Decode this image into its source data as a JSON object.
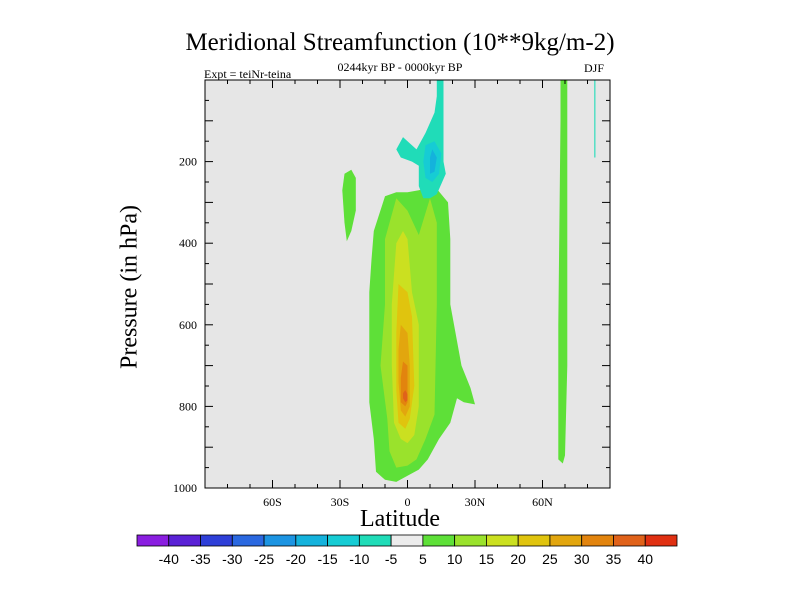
{
  "chart_data": {
    "type": "heatmap",
    "title": "Meridional Streamfunction (10**9kg/m-2)",
    "subtitle": "0244kyr BP - 0000kyr BP",
    "experiment": "Expt = teiNr-teina",
    "season": "DJF",
    "xlabel": "Latitude",
    "ylabel": "Pressure (in hPa)",
    "xlim": [
      -90,
      90
    ],
    "ylim": [
      1000,
      0
    ],
    "x_ticks": [
      {
        "value": -60,
        "label": "60S"
      },
      {
        "value": -30,
        "label": "30S"
      },
      {
        "value": 0,
        "label": "0"
      },
      {
        "value": 30,
        "label": "30N"
      },
      {
        "value": 60,
        "label": "60N"
      }
    ],
    "y_ticks": [
      {
        "value": 200,
        "label": "200"
      },
      {
        "value": 400,
        "label": "400"
      },
      {
        "value": 600,
        "label": "600"
      },
      {
        "value": 800,
        "label": "800"
      },
      {
        "value": 1000,
        "label": "1000"
      }
    ],
    "background_color": "#e6e6e6",
    "colorbar": {
      "levels": [
        "-40",
        "-35",
        "-30",
        "-25",
        "-20",
        "-15",
        "-10",
        "-5",
        "5",
        "10",
        "15",
        "20",
        "25",
        "30",
        "35",
        "40"
      ],
      "colors": [
        "#8a1ee0",
        "#5a22d6",
        "#2e3fd8",
        "#2a68e0",
        "#1c94e2",
        "#14b2dc",
        "#16ccd4",
        "#20dcb8",
        "#ececec",
        "#5ee038",
        "#9ae22c",
        "#cbe020",
        "#e0c40e",
        "#e2a60e",
        "#e2840e",
        "#e0621a",
        "#e03012"
      ]
    },
    "contour_regions": [
      {
        "name": "green-far-east-strip",
        "value": 5,
        "color": "#5ee038",
        "points": [
          [
            68,
            0
          ],
          [
            71,
            0
          ],
          [
            71,
            700
          ],
          [
            70,
            920
          ],
          [
            69,
            940
          ],
          [
            67,
            930
          ],
          [
            67,
            600
          ],
          [
            68,
            100
          ]
        ]
      },
      {
        "name": "green-western-lobe",
        "value": 5,
        "color": "#5ee038",
        "points": [
          [
            -28,
            230
          ],
          [
            -25,
            220
          ],
          [
            -23,
            240
          ],
          [
            -23,
            320
          ],
          [
            -25,
            370
          ],
          [
            -27,
            395
          ],
          [
            -28,
            350
          ],
          [
            -29,
            270
          ]
        ]
      },
      {
        "name": "green-main-cell",
        "value": 5,
        "color": "#5ee038",
        "points": [
          [
            -15,
            370
          ],
          [
            -10,
            285
          ],
          [
            -5,
            275
          ],
          [
            0,
            275
          ],
          [
            5,
            270
          ],
          [
            12,
            260
          ],
          [
            18,
            300
          ],
          [
            19,
            390
          ],
          [
            19,
            550
          ],
          [
            24,
            700
          ],
          [
            28,
            755
          ],
          [
            30,
            795
          ],
          [
            25,
            790
          ],
          [
            22,
            780
          ],
          [
            19,
            840
          ],
          [
            14,
            880
          ],
          [
            9,
            930
          ],
          [
            5,
            955
          ],
          [
            0,
            970
          ],
          [
            -5,
            985
          ],
          [
            -10,
            980
          ],
          [
            -14,
            960
          ],
          [
            -15,
            880
          ],
          [
            -17,
            790
          ],
          [
            -17,
            650
          ],
          [
            -17,
            520
          ],
          [
            -16,
            440
          ]
        ]
      },
      {
        "name": "yellow-green-cell",
        "value": 10,
        "color": "#9ae22c",
        "points": [
          [
            -10,
            390
          ],
          [
            -5,
            290
          ],
          [
            0,
            320
          ],
          [
            5,
            380
          ],
          [
            10,
            290
          ],
          [
            13,
            350
          ],
          [
            13,
            550
          ],
          [
            12,
            820
          ],
          [
            8,
            880
          ],
          [
            4,
            930
          ],
          [
            0,
            945
          ],
          [
            -5,
            950
          ],
          [
            -8,
            910
          ],
          [
            -9,
            830
          ],
          [
            -12,
            700
          ],
          [
            -10,
            550
          ]
        ]
      },
      {
        "name": "yellow-cell",
        "value": 15,
        "color": "#cbe020",
        "points": [
          [
            -5,
            400
          ],
          [
            -2,
            370
          ],
          [
            0,
            390
          ],
          [
            2,
            520
          ],
          [
            5,
            600
          ],
          [
            5,
            800
          ],
          [
            3,
            870
          ],
          [
            0,
            890
          ],
          [
            -3,
            880
          ],
          [
            -6,
            840
          ],
          [
            -7,
            700
          ],
          [
            -7,
            550
          ]
        ]
      },
      {
        "name": "gold-cell",
        "value": 20,
        "color": "#e0c40e",
        "points": [
          [
            -4,
            500
          ],
          [
            0,
            520
          ],
          [
            2,
            580
          ],
          [
            3,
            750
          ],
          [
            1,
            830
          ],
          [
            -1,
            855
          ],
          [
            -4,
            840
          ],
          [
            -5,
            760
          ],
          [
            -5,
            620
          ]
        ]
      },
      {
        "name": "orange-cell",
        "value": 25,
        "color": "#e2a60e",
        "points": [
          [
            -3,
            600
          ],
          [
            0,
            620
          ],
          [
            1,
            700
          ],
          [
            1,
            800
          ],
          [
            -1,
            825
          ],
          [
            -3,
            810
          ],
          [
            -4,
            740
          ],
          [
            -4,
            660
          ]
        ]
      },
      {
        "name": "dark-orange-cell",
        "value": 30,
        "color": "#e2840e",
        "points": [
          [
            -2,
            690
          ],
          [
            0,
            700
          ],
          [
            0,
            790
          ],
          [
            -1,
            800
          ],
          [
            -3,
            790
          ],
          [
            -3,
            730
          ]
        ]
      },
      {
        "name": "red-core",
        "value": 35,
        "color": "#e0621a",
        "points": [
          [
            -1,
            760
          ],
          [
            0,
            770
          ],
          [
            0,
            785
          ],
          [
            -1,
            790
          ],
          [
            -2,
            780
          ],
          [
            -2,
            768
          ]
        ]
      },
      {
        "name": "cyan-upper-cell",
        "value": -5,
        "color": "#20dcb8",
        "points": [
          [
            13,
            0
          ],
          [
            16,
            0
          ],
          [
            16,
            200
          ],
          [
            17,
            230
          ],
          [
            13,
            280
          ],
          [
            10,
            290
          ],
          [
            7,
            290
          ],
          [
            5,
            260
          ],
          [
            5,
            210
          ],
          [
            2,
            200
          ],
          [
            -3,
            190
          ],
          [
            -5,
            170
          ],
          [
            -2,
            140
          ],
          [
            0,
            150
          ],
          [
            4,
            170
          ],
          [
            8,
            130
          ],
          [
            12,
            80
          ],
          [
            13,
            40
          ]
        ]
      },
      {
        "name": "cyan-inner-cell",
        "value": -10,
        "color": "#16ccd4",
        "points": [
          [
            8,
            160
          ],
          [
            12,
            150
          ],
          [
            15,
            180
          ],
          [
            14,
            230
          ],
          [
            11,
            250
          ],
          [
            8,
            240
          ],
          [
            7,
            200
          ]
        ]
      },
      {
        "name": "blue-core",
        "value": -15,
        "color": "#14b2dc",
        "points": [
          [
            11,
            170
          ],
          [
            13,
            190
          ],
          [
            12,
            225
          ],
          [
            10,
            230
          ],
          [
            10,
            190
          ]
        ]
      },
      {
        "name": "cyan-east-sliver",
        "value": -5,
        "color": "#20dcb8",
        "points": [
          [
            83,
            0
          ],
          [
            83.5,
            0
          ],
          [
            83.5,
            190
          ],
          [
            83,
            190
          ]
        ]
      }
    ]
  }
}
